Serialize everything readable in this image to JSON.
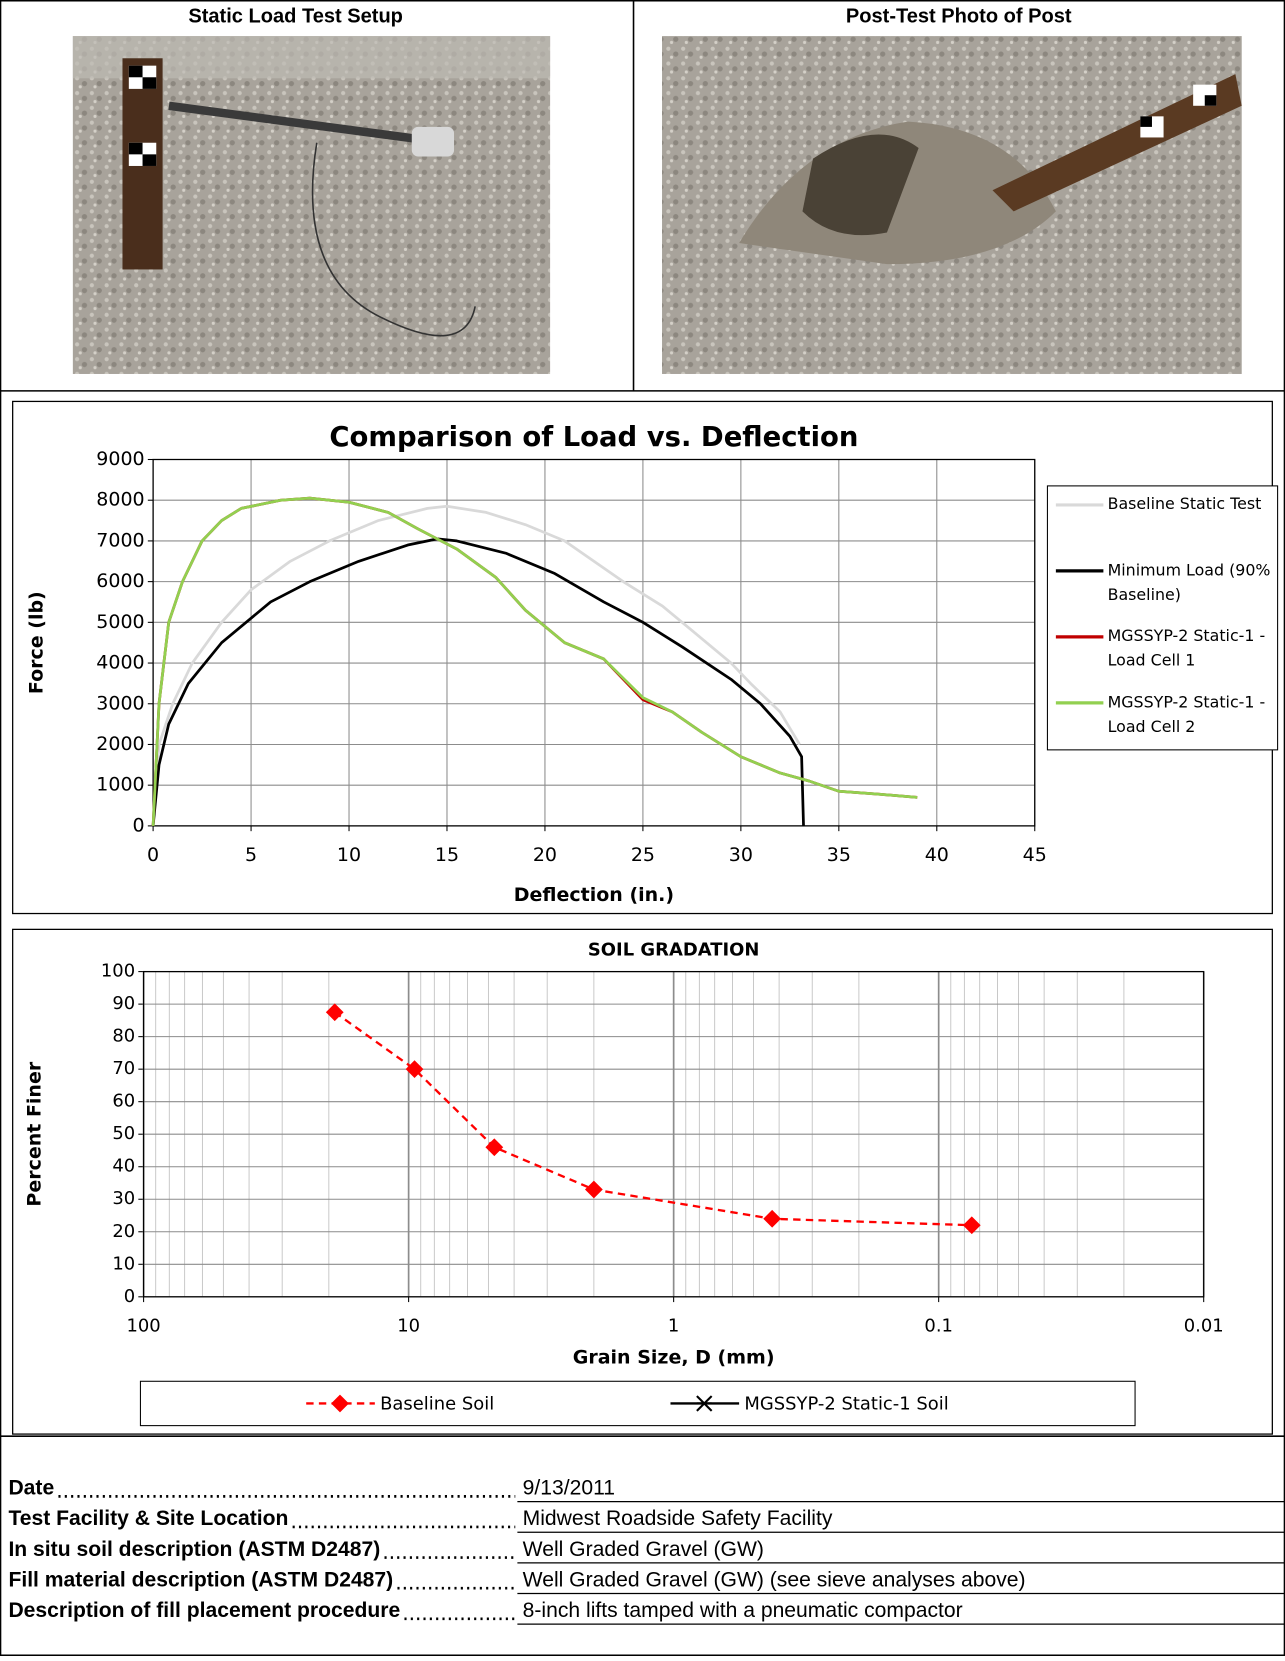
{
  "photos": [
    {
      "title": "Static Load Test Setup"
    },
    {
      "title": "Post-Test Photo of Post"
    }
  ],
  "chart_data": [
    {
      "type": "line",
      "title": "Comparison of Load vs. Deflection",
      "x_label": "Deflection (in.)",
      "y_label": "Force (lb)",
      "xlim": [
        0,
        45
      ],
      "xticks": [
        0,
        5,
        10,
        15,
        20,
        25,
        30,
        35,
        40,
        45
      ],
      "ylim": [
        0,
        9000
      ],
      "yticks": [
        0,
        1000,
        2000,
        3000,
        4000,
        5000,
        6000,
        7000,
        8000,
        9000
      ],
      "grid": true,
      "legend": "right",
      "series": [
        {
          "name": "Baseline Static Test",
          "color": "#d9d9d9",
          "x": [
            0,
            0.3,
            1,
            2,
            3.5,
            5,
            7,
            9,
            11.5,
            14,
            15,
            17,
            19,
            21,
            22.5,
            24,
            26,
            27.5,
            29.5,
            30.5,
            32,
            33
          ],
          "values": [
            0,
            2000,
            3000,
            4000,
            5000,
            5800,
            6500,
            7000,
            7500,
            7800,
            7850,
            7700,
            7400,
            7000,
            6500,
            6000,
            5400,
            4800,
            4000,
            3500,
            2800,
            2000
          ]
        },
        {
          "name": "Minimum Load (90% Baseline)",
          "color": "#000000",
          "x": [
            0,
            0.3,
            0.8,
            1.8,
            3.5,
            6,
            8,
            10.5,
            13,
            14.5,
            15.5,
            18,
            20.5,
            23,
            25,
            27,
            29.5,
            31,
            32.5,
            33.1,
            33.2
          ],
          "values": [
            0,
            1500,
            2500,
            3500,
            4500,
            5500,
            6000,
            6500,
            6900,
            7050,
            7000,
            6700,
            6200,
            5500,
            5000,
            4400,
            3600,
            3000,
            2200,
            1700,
            0
          ]
        },
        {
          "name": "MGSSYP-2 Static-1 - Load Cell 1",
          "color": "#c00000",
          "x": [
            0,
            0.3,
            0.8,
            1.5,
            2.5,
            3.5,
            4.5,
            6.5,
            8,
            10,
            12,
            13.5,
            15.5,
            17.5,
            19,
            21,
            23,
            25,
            26.5,
            28,
            30,
            32,
            33.5,
            35,
            37,
            39
          ],
          "values": [
            0,
            3000,
            5000,
            6000,
            7000,
            7500,
            7800,
            8000,
            8050,
            7950,
            7700,
            7300,
            6800,
            6100,
            5300,
            4500,
            4100,
            3100,
            2800,
            2300,
            1700,
            1300,
            1100,
            850,
            780,
            700
          ]
        },
        {
          "name": "MGSSYP-2 Static-1 - Load Cell 2",
          "color": "#92d050",
          "x": [
            0,
            0.3,
            0.8,
            1.5,
            2.5,
            3.5,
            4.5,
            6.5,
            8,
            10,
            12,
            13.5,
            15.5,
            17.5,
            19,
            21,
            23,
            25,
            26.5,
            28,
            30,
            32,
            33.5,
            35,
            37,
            39
          ],
          "values": [
            0,
            3000,
            5000,
            6000,
            7000,
            7500,
            7800,
            8000,
            8050,
            7950,
            7700,
            7300,
            6800,
            6100,
            5300,
            4500,
            4100,
            3150,
            2800,
            2300,
            1700,
            1300,
            1100,
            850,
            780,
            700
          ]
        }
      ]
    },
    {
      "type": "line",
      "title": "SOIL GRADATION",
      "x_label": "Grain Size, D (mm)",
      "y_label": "Percent Finer",
      "x_log": true,
      "xlim": [
        100,
        0.01
      ],
      "xticks": [
        100,
        10,
        1,
        0.1,
        0.01
      ],
      "ylim": [
        0,
        100
      ],
      "yticks": [
        0,
        10,
        20,
        30,
        40,
        50,
        60,
        70,
        80,
        90,
        100
      ],
      "grid": true,
      "legend": "bottom",
      "series": [
        {
          "name": "Baseline Soil",
          "color": "#ff0000",
          "line_style": "dashed",
          "marker": "diamond",
          "x": [
            19,
            9.5,
            4.75,
            2.0,
            0.425,
            0.075
          ],
          "values": [
            87.5,
            70,
            46,
            33,
            24,
            22
          ]
        },
        {
          "name": "MGSSYP-2 Static-1 Soil",
          "color": "#000000",
          "line_style": "solid",
          "marker": "x",
          "x": [],
          "values": []
        }
      ]
    }
  ],
  "table": {
    "rows": [
      [
        "Date",
        "9/13/2011"
      ],
      [
        "Test Facility & Site Location",
        "Midwest Roadside Safety Facility"
      ],
      [
        "In situ soil description (ASTM D2487)",
        "Well Graded Gravel (GW)"
      ],
      [
        "Fill material description (ASTM D2487)",
        "Well Graded Gravel (GW) (see sieve analyses above)"
      ],
      [
        "Description of fill placement procedure",
        "8-inch lifts tamped with a pneumatic compactor"
      ]
    ]
  }
}
